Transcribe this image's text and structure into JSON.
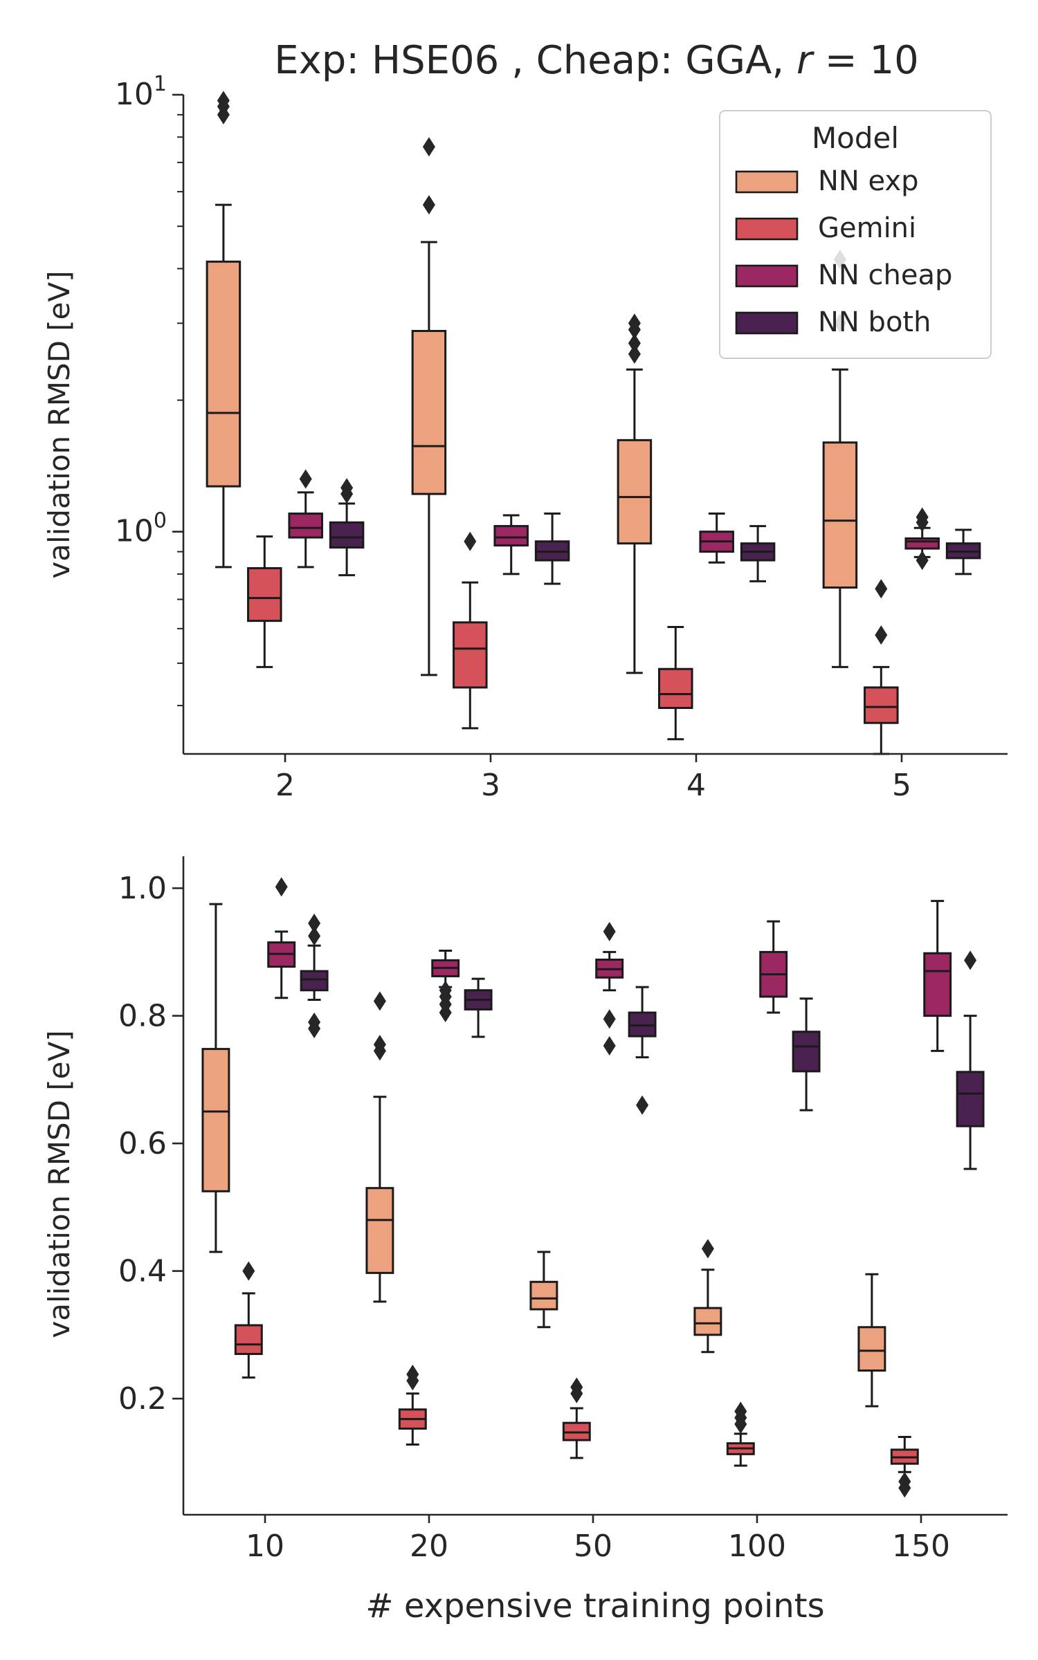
{
  "figure": {
    "title": "Exp: HSE06 , Cheap: GGA, r = 10",
    "title_prefix": "Exp: HSE06 , Cheap: GGA, ",
    "title_var": "r",
    "title_eq": " = 10"
  },
  "legend": {
    "title": "Model",
    "entries": [
      {
        "label": "NN exp",
        "color": "#ECA27E"
      },
      {
        "label": "Gemini",
        "color": "#D5525A"
      },
      {
        "label": "NN cheap",
        "color": "#9B2862"
      },
      {
        "label": "NN both",
        "color": "#4A2250"
      }
    ]
  },
  "chart_data": [
    {
      "type": "box",
      "panel": "top",
      "yscale": "log",
      "ylabel": "validation RMSD [eV]",
      "xlabel": "",
      "ylim": [
        0.31,
        10
      ],
      "yticks": [
        {
          "value": 1,
          "base": "10",
          "exp": "0"
        },
        {
          "value": 10,
          "base": "10",
          "exp": "1"
        }
      ],
      "categories": [
        "2",
        "3",
        "4",
        "5"
      ],
      "series": [
        {
          "name": "NN exp",
          "color": "#ECA27E",
          "boxes": [
            {
              "whislo": 0.83,
              "q1": 1.27,
              "med": 1.87,
              "q3": 4.15,
              "whishi": 5.6,
              "fliers": [
                9.0,
                9.4,
                9.7
              ]
            },
            {
              "whislo": 0.47,
              "q1": 1.22,
              "med": 1.57,
              "q3": 2.88,
              "whishi": 4.6,
              "fliers": [
                5.6,
                7.6
              ]
            },
            {
              "whislo": 0.475,
              "q1": 0.94,
              "med": 1.2,
              "q3": 1.62,
              "whishi": 2.35,
              "fliers": [
                2.55,
                2.7,
                2.9,
                3.0
              ]
            },
            {
              "whislo": 0.49,
              "q1": 0.745,
              "med": 1.06,
              "q3": 1.6,
              "whishi": 2.35,
              "fliers": [
                3.0,
                4.2
              ]
            }
          ]
        },
        {
          "name": "Gemini",
          "color": "#D5525A",
          "boxes": [
            {
              "whislo": 0.49,
              "q1": 0.625,
              "med": 0.705,
              "q3": 0.825,
              "whishi": 0.975,
              "fliers": []
            },
            {
              "whislo": 0.355,
              "q1": 0.44,
              "med": 0.54,
              "q3": 0.62,
              "whishi": 0.765,
              "fliers": [
                0.95
              ]
            },
            {
              "whislo": 0.335,
              "q1": 0.395,
              "med": 0.425,
              "q3": 0.485,
              "whishi": 0.605,
              "fliers": []
            },
            {
              "whislo": 0.31,
              "q1": 0.365,
              "med": 0.397,
              "q3": 0.44,
              "whishi": 0.49,
              "fliers": [
                0.58,
                0.74
              ]
            }
          ]
        },
        {
          "name": "NN cheap",
          "color": "#9B2862",
          "boxes": [
            {
              "whislo": 0.83,
              "q1": 0.97,
              "med": 1.02,
              "q3": 1.1,
              "whishi": 1.23,
              "fliers": [
                1.32
              ]
            },
            {
              "whislo": 0.8,
              "q1": 0.93,
              "med": 0.97,
              "q3": 1.03,
              "whishi": 1.09,
              "fliers": []
            },
            {
              "whislo": 0.85,
              "q1": 0.9,
              "med": 0.95,
              "q3": 1.0,
              "whishi": 1.1,
              "fliers": []
            },
            {
              "whislo": 0.875,
              "q1": 0.915,
              "med": 0.95,
              "q3": 0.965,
              "whishi": 1.02,
              "fliers": [
                0.86,
                1.05,
                1.08
              ]
            }
          ]
        },
        {
          "name": "NN both",
          "color": "#4A2250",
          "boxes": [
            {
              "whislo": 0.795,
              "q1": 0.92,
              "med": 0.97,
              "q3": 1.05,
              "whishi": 1.16,
              "fliers": [
                1.22,
                1.26
              ]
            },
            {
              "whislo": 0.76,
              "q1": 0.86,
              "med": 0.9,
              "q3": 0.95,
              "whishi": 1.1,
              "fliers": []
            },
            {
              "whislo": 0.77,
              "q1": 0.86,
              "med": 0.9,
              "q3": 0.94,
              "whishi": 1.03,
              "fliers": []
            },
            {
              "whislo": 0.8,
              "q1": 0.87,
              "med": 0.9,
              "q3": 0.94,
              "whishi": 1.01,
              "fliers": []
            }
          ]
        }
      ]
    },
    {
      "type": "box",
      "panel": "bottom",
      "yscale": "linear",
      "ylabel": "validation RMSD [eV]",
      "xlabel": "# expensive training points",
      "ylim": [
        0.018,
        1.05
      ],
      "yticks": [
        {
          "value": 0.2,
          "label": "0.2"
        },
        {
          "value": 0.4,
          "label": "0.4"
        },
        {
          "value": 0.6,
          "label": "0.6"
        },
        {
          "value": 0.8,
          "label": "0.8"
        },
        {
          "value": 1.0,
          "label": "1.0"
        }
      ],
      "categories": [
        "10",
        "20",
        "50",
        "100",
        "150"
      ],
      "series": [
        {
          "name": "NN exp",
          "color": "#ECA27E",
          "boxes": [
            {
              "whislo": 0.43,
              "q1": 0.525,
              "med": 0.65,
              "q3": 0.748,
              "whishi": 0.975,
              "fliers": []
            },
            {
              "whislo": 0.352,
              "q1": 0.397,
              "med": 0.48,
              "q3": 0.53,
              "whishi": 0.673,
              "fliers": [
                0.745,
                0.755,
                0.823
              ]
            },
            {
              "whislo": 0.312,
              "q1": 0.34,
              "med": 0.357,
              "q3": 0.383,
              "whishi": 0.43,
              "fliers": []
            },
            {
              "whislo": 0.273,
              "q1": 0.3,
              "med": 0.318,
              "q3": 0.342,
              "whishi": 0.402,
              "fliers": [
                0.435
              ]
            },
            {
              "whislo": 0.188,
              "q1": 0.244,
              "med": 0.275,
              "q3": 0.312,
              "whishi": 0.395,
              "fliers": []
            }
          ]
        },
        {
          "name": "Gemini",
          "color": "#D5525A",
          "boxes": [
            {
              "whislo": 0.233,
              "q1": 0.27,
              "med": 0.285,
              "q3": 0.315,
              "whishi": 0.365,
              "fliers": [
                0.4
              ]
            },
            {
              "whislo": 0.128,
              "q1": 0.153,
              "med": 0.168,
              "q3": 0.183,
              "whishi": 0.208,
              "fliers": [
                0.228,
                0.238
              ]
            },
            {
              "whislo": 0.107,
              "q1": 0.135,
              "med": 0.147,
              "q3": 0.162,
              "whishi": 0.185,
              "fliers": [
                0.208,
                0.218
              ]
            },
            {
              "whislo": 0.095,
              "q1": 0.113,
              "med": 0.122,
              "q3": 0.13,
              "whishi": 0.145,
              "fliers": [
                0.16,
                0.17,
                0.18
              ]
            },
            {
              "whislo": 0.085,
              "q1": 0.098,
              "med": 0.108,
              "q3": 0.12,
              "whishi": 0.14,
              "fliers": [
                0.06,
                0.07
              ]
            }
          ]
        },
        {
          "name": "NN cheap",
          "color": "#9B2862",
          "boxes": [
            {
              "whislo": 0.828,
              "q1": 0.877,
              "med": 0.897,
              "q3": 0.915,
              "whishi": 0.932,
              "fliers": [
                1.002
              ]
            },
            {
              "whislo": 0.845,
              "q1": 0.862,
              "med": 0.875,
              "q3": 0.887,
              "whishi": 0.902,
              "fliers": [
                0.805,
                0.818,
                0.83,
                0.84
              ]
            },
            {
              "whislo": 0.84,
              "q1": 0.86,
              "med": 0.873,
              "q3": 0.888,
              "whishi": 0.9,
              "fliers": [
                0.753,
                0.795,
                0.932
              ]
            },
            {
              "whislo": 0.805,
              "q1": 0.83,
              "med": 0.865,
              "q3": 0.9,
              "whishi": 0.948,
              "fliers": []
            },
            {
              "whislo": 0.745,
              "q1": 0.8,
              "med": 0.87,
              "q3": 0.898,
              "whishi": 0.98,
              "fliers": []
            }
          ]
        },
        {
          "name": "NN both",
          "color": "#4A2250",
          "boxes": [
            {
              "whislo": 0.825,
              "q1": 0.84,
              "med": 0.857,
              "q3": 0.87,
              "whishi": 0.91,
              "fliers": [
                0.78,
                0.79,
                0.925,
                0.945
              ]
            },
            {
              "whislo": 0.767,
              "q1": 0.81,
              "med": 0.825,
              "q3": 0.84,
              "whishi": 0.858,
              "fliers": []
            },
            {
              "whislo": 0.735,
              "q1": 0.768,
              "med": 0.785,
              "q3": 0.805,
              "whishi": 0.845,
              "fliers": [
                0.66
              ]
            },
            {
              "whislo": 0.652,
              "q1": 0.713,
              "med": 0.752,
              "q3": 0.775,
              "whishi": 0.827,
              "fliers": []
            },
            {
              "whislo": 0.56,
              "q1": 0.627,
              "med": 0.678,
              "q3": 0.712,
              "whishi": 0.8,
              "fliers": [
                0.887
              ]
            }
          ]
        }
      ]
    }
  ]
}
